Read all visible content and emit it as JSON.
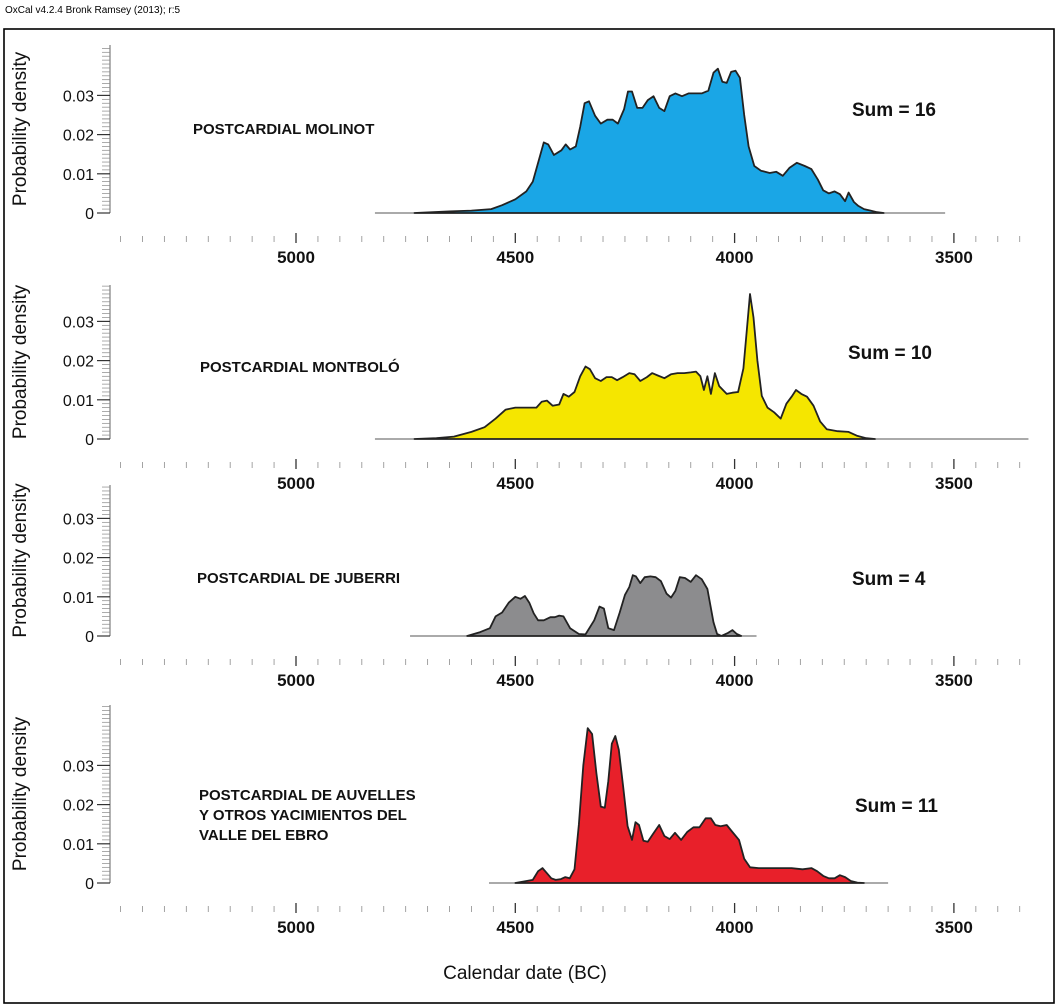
{
  "header": {
    "software": "OxCal v4.2.4 Bronk Ramsey (2013); r:5"
  },
  "chart_data": {
    "type": "area",
    "xlabel": "Calendar date (BC)",
    "ylabel": "Probability density",
    "xlim": [
      5400,
      3330
    ],
    "x_ticks": [
      5000,
      4500,
      4000,
      3500
    ],
    "y_ticks": [
      0,
      0.01,
      0.02,
      0.03
    ],
    "y_tick_labels": [
      "0",
      "0.01",
      "0.02",
      "0.03"
    ],
    "ylim": [
      0,
      0.04
    ],
    "panels": [
      {
        "label_lines": [
          "POSTCARDIAL MOLINOT"
        ],
        "sum_label": "Sum = 16",
        "color": "#1aa6e6",
        "x_range": [
          4820,
          3520
        ],
        "points": [
          [
            4730,
            0
          ],
          [
            4650,
            0.0004
          ],
          [
            4600,
            0.0006
          ],
          [
            4555,
            0.001
          ],
          [
            4530,
            0.002
          ],
          [
            4500,
            0.0035
          ],
          [
            4475,
            0.0055
          ],
          [
            4460,
            0.008
          ],
          [
            4445,
            0.014
          ],
          [
            4435,
            0.018
          ],
          [
            4425,
            0.0175
          ],
          [
            4412,
            0.0148
          ],
          [
            4395,
            0.016
          ],
          [
            4385,
            0.0175
          ],
          [
            4375,
            0.0162
          ],
          [
            4362,
            0.017
          ],
          [
            4352,
            0.022
          ],
          [
            4342,
            0.028
          ],
          [
            4332,
            0.0285
          ],
          [
            4318,
            0.0248
          ],
          [
            4305,
            0.0228
          ],
          [
            4290,
            0.0238
          ],
          [
            4278,
            0.0238
          ],
          [
            4266,
            0.0228
          ],
          [
            4252,
            0.0265
          ],
          [
            4243,
            0.031
          ],
          [
            4234,
            0.031
          ],
          [
            4222,
            0.0268
          ],
          [
            4210,
            0.0268
          ],
          [
            4198,
            0.0288
          ],
          [
            4185,
            0.0298
          ],
          [
            4172,
            0.0268
          ],
          [
            4160,
            0.026
          ],
          [
            4148,
            0.0298
          ],
          [
            4135,
            0.0305
          ],
          [
            4120,
            0.0298
          ],
          [
            4105,
            0.0305
          ],
          [
            4090,
            0.0305
          ],
          [
            4075,
            0.0305
          ],
          [
            4060,
            0.0312
          ],
          [
            4048,
            0.0358
          ],
          [
            4038,
            0.0368
          ],
          [
            4028,
            0.0335
          ],
          [
            4018,
            0.0332
          ],
          [
            4008,
            0.036
          ],
          [
            3998,
            0.0363
          ],
          [
            3988,
            0.0345
          ],
          [
            3978,
            0.025
          ],
          [
            3968,
            0.017
          ],
          [
            3955,
            0.012
          ],
          [
            3940,
            0.0108
          ],
          [
            3920,
            0.0102
          ],
          [
            3905,
            0.0105
          ],
          [
            3890,
            0.0095
          ],
          [
            3875,
            0.0115
          ],
          [
            3858,
            0.0128
          ],
          [
            3840,
            0.012
          ],
          [
            3825,
            0.0112
          ],
          [
            3810,
            0.0085
          ],
          [
            3798,
            0.0058
          ],
          [
            3785,
            0.005
          ],
          [
            3772,
            0.0055
          ],
          [
            3760,
            0.0048
          ],
          [
            3748,
            0.003
          ],
          [
            3740,
            0.0052
          ],
          [
            3728,
            0.0028
          ],
          [
            3718,
            0.0018
          ],
          [
            3705,
            0.001
          ],
          [
            3690,
            0.0006
          ],
          [
            3675,
            0.0002
          ],
          [
            3660,
            0
          ]
        ]
      },
      {
        "label_lines": [
          "POSTCARDIAL MONTBOLÓ"
        ],
        "sum_label": "Sum = 10",
        "color": "#f5e600",
        "x_range": [
          4820,
          3330
        ],
        "points": [
          [
            4730,
            0
          ],
          [
            4680,
            0.0002
          ],
          [
            4640,
            0.0006
          ],
          [
            4600,
            0.0018
          ],
          [
            4570,
            0.003
          ],
          [
            4545,
            0.0052
          ],
          [
            4522,
            0.0075
          ],
          [
            4500,
            0.008
          ],
          [
            4475,
            0.008
          ],
          [
            4452,
            0.008
          ],
          [
            4440,
            0.0095
          ],
          [
            4428,
            0.0098
          ],
          [
            4415,
            0.0085
          ],
          [
            4400,
            0.0088
          ],
          [
            4390,
            0.0115
          ],
          [
            4378,
            0.0108
          ],
          [
            4365,
            0.012
          ],
          [
            4352,
            0.016
          ],
          [
            4340,
            0.0185
          ],
          [
            4330,
            0.0178
          ],
          [
            4318,
            0.0155
          ],
          [
            4305,
            0.0148
          ],
          [
            4292,
            0.0158
          ],
          [
            4280,
            0.0158
          ],
          [
            4268,
            0.015
          ],
          [
            4255,
            0.0158
          ],
          [
            4240,
            0.0168
          ],
          [
            4228,
            0.0165
          ],
          [
            4215,
            0.0148
          ],
          [
            4200,
            0.0158
          ],
          [
            4188,
            0.0168
          ],
          [
            4175,
            0.0162
          ],
          [
            4160,
            0.0155
          ],
          [
            4145,
            0.0165
          ],
          [
            4130,
            0.0168
          ],
          [
            4115,
            0.0168
          ],
          [
            4100,
            0.017
          ],
          [
            4088,
            0.0172
          ],
          [
            4078,
            0.016
          ],
          [
            4070,
            0.0125
          ],
          [
            4062,
            0.016
          ],
          [
            4054,
            0.0115
          ],
          [
            4045,
            0.0168
          ],
          [
            4035,
            0.0135
          ],
          [
            4018,
            0.0115
          ],
          [
            4005,
            0.0118
          ],
          [
            3992,
            0.012
          ],
          [
            3980,
            0.018
          ],
          [
            3972,
            0.028
          ],
          [
            3965,
            0.037
          ],
          [
            3957,
            0.031
          ],
          [
            3948,
            0.02
          ],
          [
            3938,
            0.011
          ],
          [
            3925,
            0.008
          ],
          [
            3910,
            0.0068
          ],
          [
            3895,
            0.0052
          ],
          [
            3882,
            0.009
          ],
          [
            3870,
            0.0108
          ],
          [
            3860,
            0.0125
          ],
          [
            3848,
            0.0115
          ],
          [
            3835,
            0.0108
          ],
          [
            3820,
            0.0085
          ],
          [
            3805,
            0.0045
          ],
          [
            3790,
            0.0025
          ],
          [
            3765,
            0.002
          ],
          [
            3740,
            0.0018
          ],
          [
            3720,
            0.0008
          ],
          [
            3700,
            0.0002
          ],
          [
            3680,
            0
          ]
        ]
      },
      {
        "label_lines": [
          "POSTCARDIAL DE JUBERRI"
        ],
        "sum_label": "Sum = 4",
        "color": "#8c8c8e",
        "x_range": [
          4740,
          3950
        ],
        "points": [
          [
            4610,
            0
          ],
          [
            4580,
            0.001
          ],
          [
            4558,
            0.002
          ],
          [
            4545,
            0.005
          ],
          [
            4530,
            0.006
          ],
          [
            4515,
            0.0085
          ],
          [
            4500,
            0.01
          ],
          [
            4488,
            0.0095
          ],
          [
            4478,
            0.0102
          ],
          [
            4468,
            0.0085
          ],
          [
            4458,
            0.0058
          ],
          [
            4448,
            0.004
          ],
          [
            4435,
            0.004
          ],
          [
            4420,
            0.0048
          ],
          [
            4410,
            0.0048
          ],
          [
            4400,
            0.0052
          ],
          [
            4390,
            0.005
          ],
          [
            4375,
            0.002
          ],
          [
            4355,
            0.0005
          ],
          [
            4340,
            0.0004
          ],
          [
            4320,
            0.004
          ],
          [
            4308,
            0.0075
          ],
          [
            4298,
            0.007
          ],
          [
            4288,
            0.002
          ],
          [
            4275,
            0.0015
          ],
          [
            4262,
            0.006
          ],
          [
            4250,
            0.0105
          ],
          [
            4240,
            0.0125
          ],
          [
            4232,
            0.0155
          ],
          [
            4225,
            0.0152
          ],
          [
            4215,
            0.0135
          ],
          [
            4205,
            0.015
          ],
          [
            4192,
            0.0152
          ],
          [
            4180,
            0.015
          ],
          [
            4168,
            0.014
          ],
          [
            4155,
            0.0108
          ],
          [
            4145,
            0.0098
          ],
          [
            4135,
            0.0115
          ],
          [
            4125,
            0.015
          ],
          [
            4113,
            0.0148
          ],
          [
            4100,
            0.0138
          ],
          [
            4088,
            0.0155
          ],
          [
            4075,
            0.0145
          ],
          [
            4062,
            0.012
          ],
          [
            4048,
            0.0035
          ],
          [
            4040,
            0.0005
          ],
          [
            4030,
            0
          ],
          [
            4015,
            0.0008
          ],
          [
            4005,
            0.0015
          ],
          [
            3995,
            0.0005
          ],
          [
            3985,
            0
          ]
        ]
      },
      {
        "label_lines": [
          "POSTCARDIAL DE AUVELLES",
          "Y OTROS YACIMIENTOS DEL",
          "VALLE DEL EBRO"
        ],
        "sum_label": "Sum = 11",
        "color": "#e8202a",
        "x_range": [
          4560,
          3650
        ],
        "points": [
          [
            4500,
            0
          ],
          [
            4460,
            0.0008
          ],
          [
            4448,
            0.003
          ],
          [
            4438,
            0.0038
          ],
          [
            4428,
            0.0025
          ],
          [
            4418,
            0.0012
          ],
          [
            4408,
            0.0008
          ],
          [
            4396,
            0.001
          ],
          [
            4386,
            0.0015
          ],
          [
            4376,
            0.0012
          ],
          [
            4365,
            0.0035
          ],
          [
            4355,
            0.015
          ],
          [
            4345,
            0.03
          ],
          [
            4335,
            0.0395
          ],
          [
            4325,
            0.038
          ],
          [
            4315,
            0.028
          ],
          [
            4305,
            0.0195
          ],
          [
            4296,
            0.0192
          ],
          [
            4288,
            0.026
          ],
          [
            4280,
            0.0355
          ],
          [
            4272,
            0.0375
          ],
          [
            4264,
            0.034
          ],
          [
            4254,
            0.0245
          ],
          [
            4244,
            0.0145
          ],
          [
            4234,
            0.011
          ],
          [
            4226,
            0.0155
          ],
          [
            4218,
            0.0148
          ],
          [
            4208,
            0.0108
          ],
          [
            4198,
            0.0105
          ],
          [
            4186,
            0.0125
          ],
          [
            4172,
            0.0148
          ],
          [
            4160,
            0.012
          ],
          [
            4148,
            0.0112
          ],
          [
            4136,
            0.0128
          ],
          [
            4122,
            0.011
          ],
          [
            4108,
            0.013
          ],
          [
            4094,
            0.0142
          ],
          [
            4080,
            0.0142
          ],
          [
            4066,
            0.0165
          ],
          [
            4054,
            0.0165
          ],
          [
            4044,
            0.0148
          ],
          [
            4032,
            0.0145
          ],
          [
            4018,
            0.0148
          ],
          [
            4005,
            0.013
          ],
          [
            3990,
            0.011
          ],
          [
            3978,
            0.0062
          ],
          [
            3965,
            0.004
          ],
          [
            3945,
            0.0038
          ],
          [
            3920,
            0.0038
          ],
          [
            3895,
            0.0038
          ],
          [
            3870,
            0.0038
          ],
          [
            3845,
            0.0035
          ],
          [
            3825,
            0.0038
          ],
          [
            3812,
            0.003
          ],
          [
            3798,
            0.0018
          ],
          [
            3785,
            0.0012
          ],
          [
            3772,
            0.0012
          ],
          [
            3760,
            0.002
          ],
          [
            3748,
            0.0015
          ],
          [
            3735,
            0.0005
          ],
          [
            3720,
            0.0001
          ],
          [
            3705,
            0
          ]
        ]
      }
    ]
  }
}
